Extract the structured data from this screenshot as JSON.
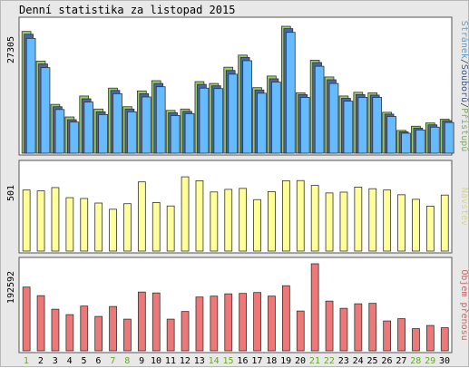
{
  "chart_data": [
    {
      "type": "bar",
      "title": "Denní statistika za listopad 2015",
      "ymax_label": "27305",
      "ylim": [
        0,
        27305
      ],
      "categories": [
        "1",
        "2",
        "3",
        "4",
        "5",
        "6",
        "7",
        "8",
        "9",
        "10",
        "11",
        "12",
        "13",
        "14",
        "15",
        "16",
        "17",
        "18",
        "19",
        "20",
        "21",
        "22",
        "23",
        "24",
        "25",
        "26",
        "27",
        "28",
        "29",
        "30"
      ],
      "weekend_days": [
        "1",
        "7",
        "8",
        "14",
        "15",
        "21",
        "22",
        "28",
        "29"
      ],
      "series": [
        {
          "name": "Přístupů",
          "color": "#99cc66",
          "values": [
            26200,
            19800,
            10500,
            7800,
            12300,
            9500,
            14000,
            10000,
            13400,
            15600,
            9200,
            9500,
            15400,
            15000,
            18500,
            21100,
            14100,
            16600,
            27300,
            13000,
            20000,
            16400,
            12300,
            13100,
            13000,
            8800,
            4900,
            5800,
            6500,
            7300
          ]
        },
        {
          "name": "Souborů",
          "color": "#4466aa",
          "values": [
            25600,
            19200,
            10000,
            7200,
            11700,
            8900,
            13500,
            9500,
            12800,
            15000,
            8700,
            9000,
            14800,
            14500,
            17800,
            20600,
            13600,
            16000,
            26800,
            12600,
            19500,
            15800,
            11800,
            12600,
            12500,
            8400,
            4600,
            5400,
            6100,
            7000
          ]
        },
        {
          "name": "Stránek",
          "color": "#66bbff",
          "values": [
            24700,
            18400,
            9400,
            6700,
            11000,
            8300,
            12800,
            8900,
            12100,
            14300,
            8100,
            8500,
            14000,
            13900,
            17000,
            19900,
            12900,
            15300,
            26000,
            12000,
            18700,
            15000,
            11200,
            12000,
            12000,
            7900,
            4300,
            5000,
            5600,
            6600
          ]
        }
      ]
    },
    {
      "type": "bar",
      "ymax_label": "501",
      "ylim": [
        0,
        501
      ],
      "categories": [
        "1",
        "2",
        "3",
        "4",
        "5",
        "6",
        "7",
        "8",
        "9",
        "10",
        "11",
        "12",
        "13",
        "14",
        "15",
        "16",
        "17",
        "18",
        "19",
        "20",
        "21",
        "22",
        "23",
        "24",
        "25",
        "26",
        "27",
        "28",
        "29",
        "30"
      ],
      "series": [
        {
          "name": "Návštěv",
          "color": "#ffff99",
          "values": [
            375,
            370,
            390,
            328,
            323,
            295,
            257,
            291,
            425,
            298,
            277,
            456,
            432,
            363,
            379,
            385,
            316,
            365,
            432,
            433,
            403,
            357,
            362,
            393,
            383,
            375,
            346,
            318,
            276,
            344
          ]
        }
      ]
    },
    {
      "type": "bar",
      "ymax_label": "192592",
      "ylim": [
        0,
        192592
      ],
      "categories": [
        "1",
        "2",
        "3",
        "4",
        "5",
        "6",
        "7",
        "8",
        "9",
        "10",
        "11",
        "12",
        "13",
        "14",
        "15",
        "16",
        "17",
        "18",
        "19",
        "20",
        "21",
        "22",
        "23",
        "24",
        "25",
        "26",
        "27",
        "28",
        "29",
        "30"
      ],
      "series": [
        {
          "name": "Objem přenosu",
          "color": "#ee7777",
          "values": [
            141000,
            122000,
            92000,
            80000,
            99000,
            76000,
            98000,
            70000,
            130000,
            128000,
            70000,
            87000,
            119000,
            121000,
            126000,
            127000,
            129000,
            121000,
            144000,
            88000,
            192592,
            110000,
            94000,
            104000,
            105000,
            66000,
            71000,
            49000,
            56000,
            51000
          ]
        }
      ]
    }
  ]
}
